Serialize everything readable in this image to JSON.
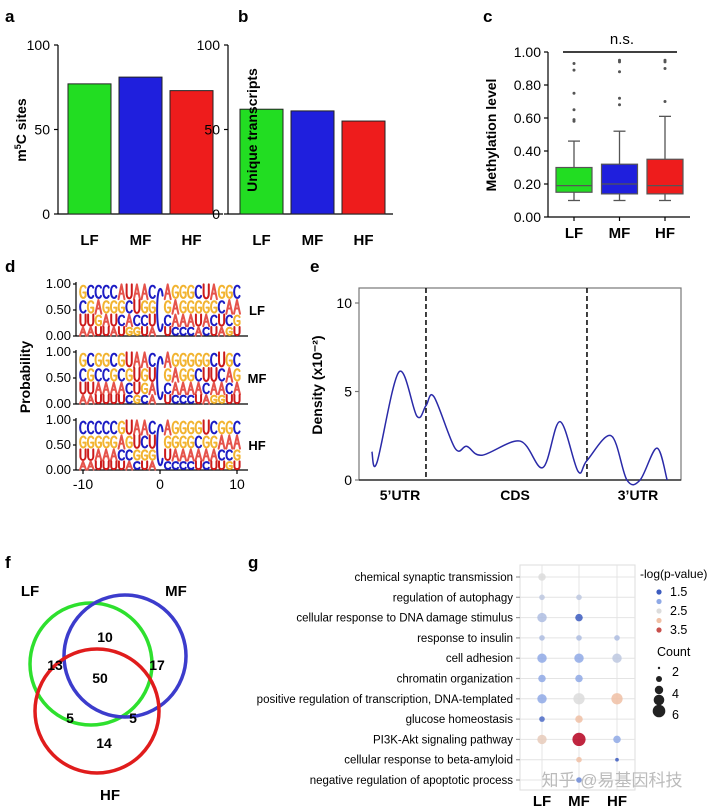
{
  "panel_letters": [
    "a",
    "b",
    "c",
    "d",
    "e",
    "f",
    "g"
  ],
  "watermark": "知乎 @易基因科技",
  "chart_data": [
    {
      "id": "a",
      "type": "bar",
      "categories": [
        "LF",
        "MF",
        "HF"
      ],
      "values": [
        77,
        81,
        73
      ],
      "colors": [
        "#22dd22",
        "#1f1fdd",
        "#ee1c1c"
      ],
      "ylabel": "m5C sites",
      "ylim": [
        0,
        100
      ],
      "yticks": [
        "0",
        "50",
        "100"
      ]
    },
    {
      "id": "b",
      "type": "bar",
      "categories": [
        "LF",
        "MF",
        "HF"
      ],
      "values": [
        62,
        61,
        55
      ],
      "colors": [
        "#22dd22",
        "#1f1fdd",
        "#ee1c1c"
      ],
      "ylabel": "Unique transcripts",
      "ylim": [
        0,
        100
      ],
      "yticks": [
        "0",
        "50",
        "100"
      ]
    },
    {
      "id": "c",
      "type": "box",
      "categories": [
        "LF",
        "MF",
        "HF"
      ],
      "colors": [
        "#22dd22",
        "#1f1fdd",
        "#ee1c1c"
      ],
      "boxes": [
        {
          "min": 0.1,
          "q1": 0.15,
          "median": 0.19,
          "q3": 0.3,
          "max": 0.46,
          "outliers": [
            0.58,
            0.59,
            0.65,
            0.75,
            0.89,
            0.93
          ]
        },
        {
          "min": 0.1,
          "q1": 0.14,
          "median": 0.2,
          "q3": 0.32,
          "max": 0.52,
          "outliers": [
            0.68,
            0.72,
            0.88,
            0.94,
            0.95
          ]
        },
        {
          "min": 0.1,
          "q1": 0.14,
          "median": 0.19,
          "q3": 0.35,
          "max": 0.61,
          "outliers": [
            0.7,
            0.9,
            0.94,
            0.95
          ]
        }
      ],
      "ylabel": "Methylation level",
      "ylim": [
        0,
        1
      ],
      "yticks": [
        "0.00",
        "0.20",
        "0.40",
        "0.60",
        "0.80",
        "1.00"
      ],
      "annotation": "n.s."
    },
    {
      "id": "d",
      "type": "sequence-logo",
      "ylabel": "Probability",
      "yticks": [
        "0.00",
        "0.50",
        "1.00"
      ],
      "xticks": [
        "-10",
        "0",
        "10"
      ],
      "letter_colors": {
        "A": "#e5534b",
        "U": "#cc1a1a",
        "G": "#f2b431",
        "C": "#1c1cc4"
      },
      "logos": [
        {
          "label": "LF",
          "rows": [
            "GCCCCAUAAC",
            "CGAGGGCUGG",
            "UUGAUCACCU",
            "AAUUAUGGUA"
          ],
          "rows_right": [
            "AGGGCUAGGC",
            "GAGGGGGCAA",
            "CAAAUACUCG",
            "UCCCACUAGU"
          ]
        },
        {
          "label": "MF",
          "rows": [
            "GCGGCGUAAC",
            "CGCCGCGUGU",
            "UUAAAACUGA",
            "AAUUUUCGCA"
          ],
          "rows_right": [
            "AGGGGGCUGC",
            "GAGGCUUCAG",
            "CAAAACAACA",
            "UCCCUAGGUU"
          ]
        },
        {
          "label": "HF",
          "rows": [
            "CCCCCGUAAC",
            "GGGGGAGUCU",
            "UUAAACCGGG",
            "AAUUUUACUA"
          ],
          "rows_right": [
            "AGGGGUCGGC",
            "GGGGCGGAAA",
            "UAAAAAACCG",
            "CCCCUCUUGU"
          ]
        }
      ]
    },
    {
      "id": "e",
      "type": "line",
      "ylabel": "Density (x10⁻²)",
      "ylim": [
        0,
        10.8
      ],
      "yticks": [
        "0",
        "5",
        "10"
      ],
      "region_labels": [
        "5’UTR",
        "CDS",
        "3’UTR"
      ],
      "region_boundaries": [
        0.208,
        0.708
      ],
      "line_color": "#2a2aa8",
      "points": [
        [
          0.04,
          1.6
        ],
        [
          0.056,
          1.0
        ],
        [
          0.124,
          6.1
        ],
        [
          0.18,
          3.6
        ],
        [
          0.208,
          4.2
        ],
        [
          0.233,
          4.7
        ],
        [
          0.298,
          1.8
        ],
        [
          0.335,
          1.9
        ],
        [
          0.382,
          1.4
        ],
        [
          0.5,
          2.2
        ],
        [
          0.571,
          0.7
        ],
        [
          0.624,
          3.3
        ],
        [
          0.68,
          0.5
        ],
        [
          0.708,
          1.1
        ],
        [
          0.783,
          2.5
        ],
        [
          0.832,
          0
        ],
        [
          0.873,
          0
        ],
        [
          0.925,
          1.8
        ],
        [
          0.957,
          0
        ]
      ]
    },
    {
      "id": "f",
      "type": "venn",
      "sets": [
        {
          "label": "LF",
          "color": "#2ee02e"
        },
        {
          "label": "MF",
          "color": "#3c3ccc"
        },
        {
          "label": "HF",
          "color": "#e01c1c"
        }
      ],
      "regions": {
        "LF": "13",
        "MF": "17",
        "HF": "14",
        "LF_MF": "10",
        "LF_HF": "5",
        "MF_HF": "5",
        "LF_MF_HF": "50"
      }
    },
    {
      "id": "g",
      "type": "dot",
      "columns": [
        "LF",
        "MF",
        "HF"
      ],
      "terms": [
        "chemical synaptic transmission",
        "regulation of autophagy",
        "cellular response to DNA damage stimulus",
        "response to insulin",
        "cell adhesion",
        "chromatin organization",
        "positive regulation of transcription, DNA-templated",
        "glucose homeostasis",
        "PI3K-Akt signaling pathway",
        "cellular response to beta-amyloid",
        "negative regulation of apoptotic process"
      ],
      "dots": [
        [
          [
            2.5,
            3
          ],
          null,
          null
        ],
        [
          [
            2.3,
            2
          ],
          [
            2.3,
            2
          ],
          null
        ],
        [
          [
            2.2,
            4
          ],
          [
            1.5,
            3
          ],
          null
        ],
        [
          [
            2.2,
            2
          ],
          [
            2.2,
            2
          ],
          [
            2.2,
            2
          ]
        ],
        [
          [
            2.0,
            4
          ],
          [
            2.0,
            4
          ],
          [
            2.3,
            4
          ]
        ],
        [
          [
            2.0,
            3
          ],
          [
            2.0,
            3
          ],
          null
        ],
        [
          [
            2.0,
            4
          ],
          [
            2.5,
            5
          ],
          [
            3.0,
            5
          ]
        ],
        [
          [
            1.6,
            2
          ],
          [
            3.0,
            3
          ],
          null
        ],
        [
          [
            2.8,
            4
          ],
          [
            4.0,
            6
          ],
          [
            2.0,
            3
          ]
        ],
        [
          null,
          [
            3.0,
            2
          ],
          [
            1.5,
            1
          ]
        ],
        [
          null,
          [
            1.8,
            2
          ],
          null
        ]
      ],
      "color_legend_title": "-log(p-value)",
      "color_legend": [
        "1.5",
        "2.5",
        "3.5"
      ],
      "size_legend_title": "Count",
      "size_legend": [
        "2",
        "4",
        "6"
      ]
    }
  ]
}
